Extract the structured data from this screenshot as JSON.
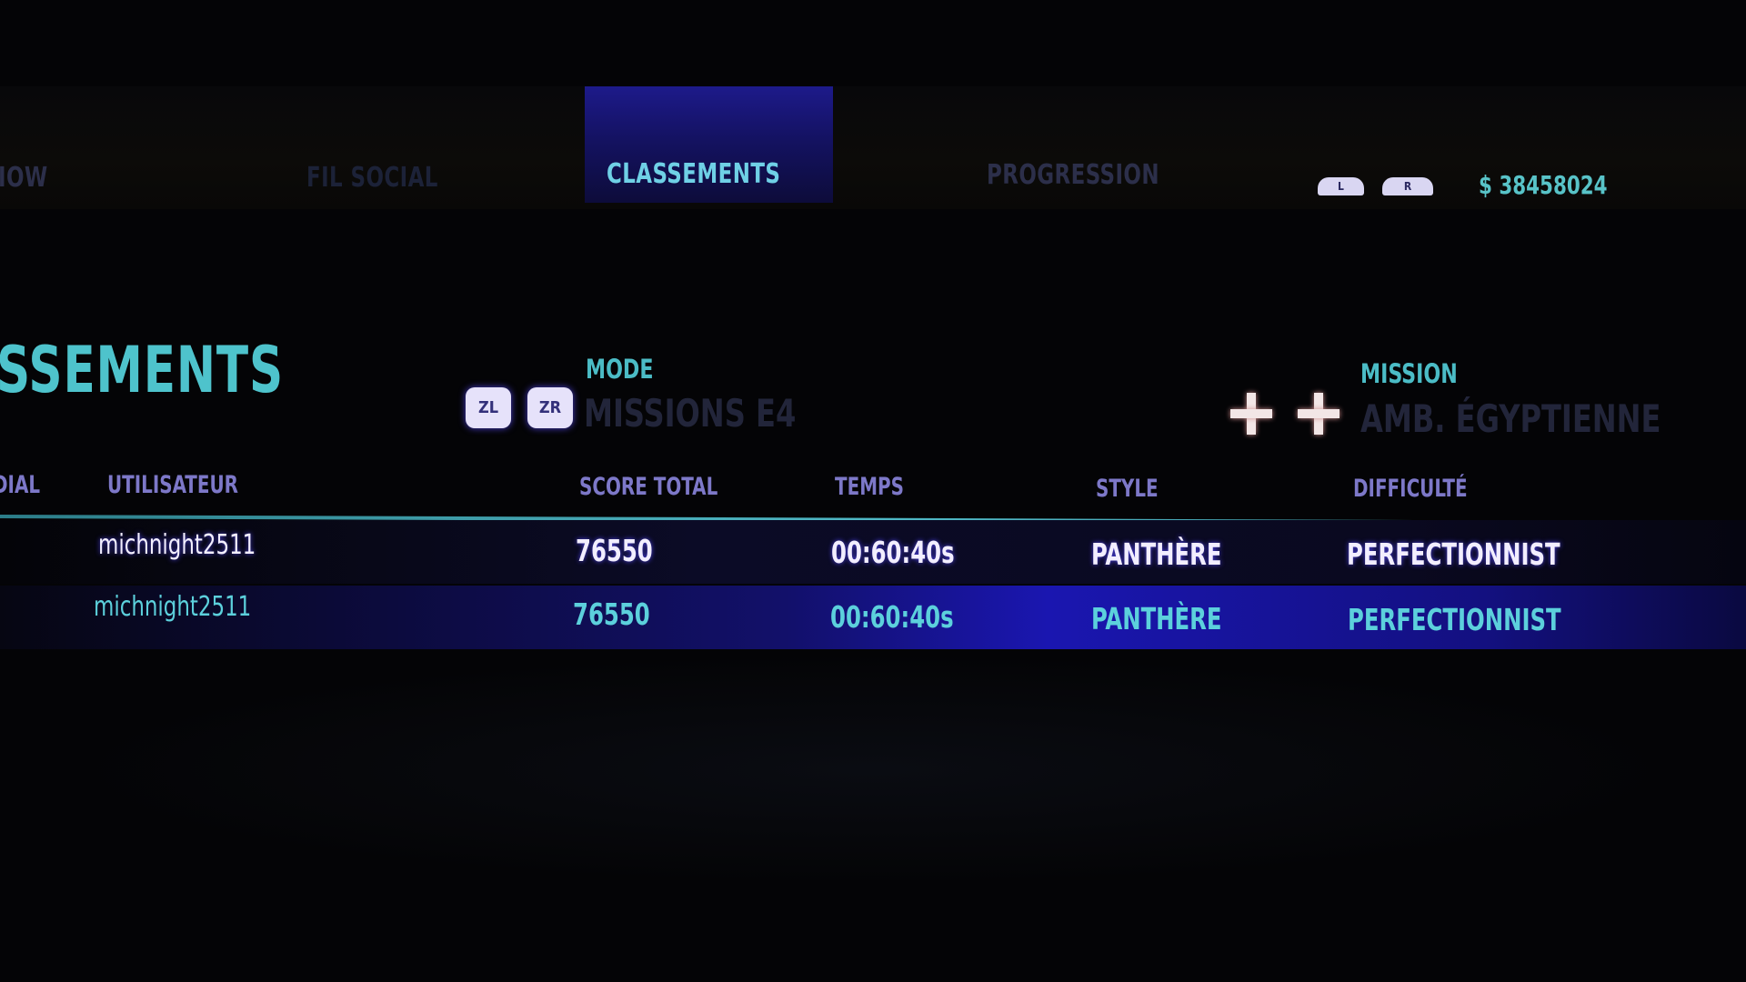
{
  "tabs": [
    {
      "label": "IOW",
      "active": false
    },
    {
      "label": "FIL SOCIAL",
      "active": false
    },
    {
      "label": "CLASSEMENTS",
      "active": true
    },
    {
      "label": "PROGRESSION",
      "active": false
    }
  ],
  "shoulder_buttons": {
    "left": "L",
    "right": "R"
  },
  "currency": "$ 38458024",
  "page_title": "SSEMENTS",
  "mode": {
    "trigger_left": "ZL",
    "trigger_right": "ZR",
    "label": "MODE",
    "value": "MISSIONS E4"
  },
  "mission": {
    "label": "MISSION",
    "value": "AMB. ÉGYPTIENNE",
    "icon": "dpad-plus-icon"
  },
  "table": {
    "headers": [
      "DIAL",
      "UTILISATEUR",
      "SCORE TOTAL",
      "TEMPS",
      "STYLE",
      "DIFFICULTÉ"
    ],
    "rows": [
      {
        "user": "michnight2511",
        "score": "76550",
        "time": "00:60:40s",
        "style": "PANTHÈRE",
        "difficulty": "PERFECTIONNIST"
      },
      {
        "user": "michnight2511",
        "score": "76550",
        "time": "00:60:40s",
        "style": "PANTHÈRE",
        "difficulty": "PERFECTIONNIST",
        "selected": true
      }
    ]
  },
  "colors": {
    "accent": "#4ec3cc",
    "tab_active_bg": "#1d1a8a",
    "selected_row": "#1a16b0"
  }
}
